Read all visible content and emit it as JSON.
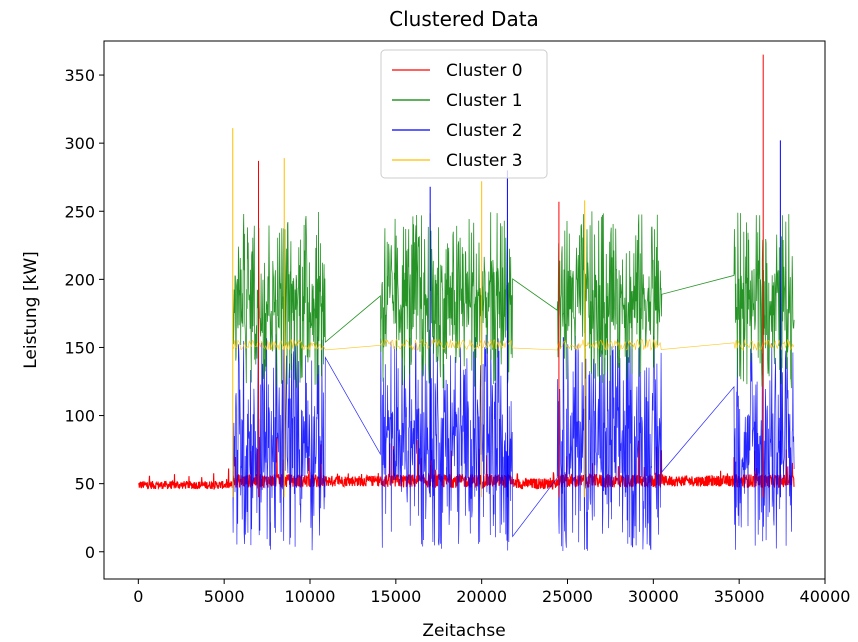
{
  "chart_data": {
    "type": "line",
    "title": "Clustered Data",
    "xlabel": "Zeitachse",
    "ylabel": "Leistung [kW]",
    "xlim": [
      -2000,
      40000
    ],
    "ylim": [
      -20,
      375
    ],
    "xticks": [
      0,
      5000,
      10000,
      15000,
      20000,
      25000,
      30000,
      35000,
      40000
    ],
    "yticks": [
      0,
      50,
      100,
      150,
      200,
      250,
      300,
      350
    ],
    "grid": false,
    "legend_position": "upper-center",
    "series": [
      {
        "name": "Cluster 0",
        "color": "#ff0000"
      },
      {
        "name": "Cluster 1",
        "color": "#008000"
      },
      {
        "name": "Cluster 2",
        "color": "#0000ff"
      },
      {
        "name": "Cluster 3",
        "color": "#ffbf00"
      }
    ],
    "active_periods": [
      [
        5500,
        10900
      ],
      [
        14100,
        21800
      ],
      [
        24400,
        30500
      ],
      [
        34700,
        38200
      ]
    ],
    "baseline_periods": [
      {
        "x": [
          0,
          5500
        ],
        "level": 49,
        "noise": 3
      },
      {
        "x": [
          10900,
          14100
        ],
        "level": 52,
        "noise": 4
      },
      {
        "x": [
          21800,
          24400
        ],
        "level": 50,
        "noise": 4
      },
      {
        "x": [
          30500,
          34700
        ],
        "level": 52,
        "noise": 4
      }
    ],
    "peaks": [
      {
        "series": "Cluster 3",
        "x": 5500,
        "y": 311
      },
      {
        "series": "Cluster 0",
        "x": 7000,
        "y": 287
      },
      {
        "series": "Cluster 3",
        "x": 8500,
        "y": 289
      },
      {
        "series": "Cluster 2",
        "x": 17000,
        "y": 268
      },
      {
        "series": "Cluster 3",
        "x": 20000,
        "y": 272
      },
      {
        "series": "Cluster 2",
        "x": 21500,
        "y": 280
      },
      {
        "series": "Cluster 0",
        "x": 24500,
        "y": 257
      },
      {
        "series": "Cluster 3",
        "x": 26000,
        "y": 258
      },
      {
        "series": "Cluster 0",
        "x": 36400,
        "y": 365
      },
      {
        "series": "Cluster 2",
        "x": 37400,
        "y": 302
      }
    ]
  }
}
